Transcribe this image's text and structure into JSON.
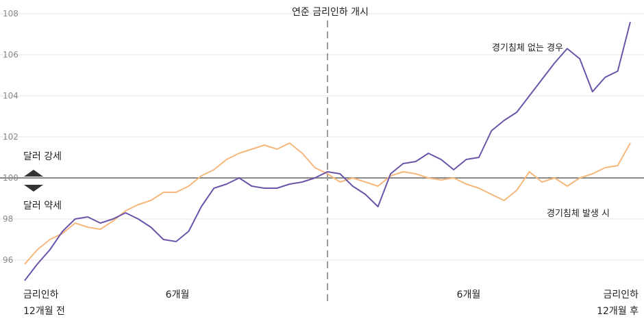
{
  "chart_data": {
    "type": "line",
    "title": "",
    "xlabel": "",
    "ylabel": "",
    "ylim": [
      95,
      108
    ],
    "yticks": [
      96,
      98,
      100,
      102,
      104,
      106,
      108
    ],
    "grid": true,
    "baseline": 100,
    "colors": {
      "no_recession": "#6a53a8",
      "recession": "#f7b77a",
      "baseline": "#888888",
      "event_line": "#9a9a9a",
      "arrow": "#333333"
    },
    "annotations": {
      "event": "연준 금리인하 개시",
      "dollar_strong": "달러 강세",
      "dollar_weak": "달러 약세"
    },
    "x_labels": {
      "start": [
        "금리인하",
        "12개월 전"
      ],
      "m6_before": "6개월",
      "m6_after": "6개월",
      "end": [
        "금리인하",
        "12개월 후"
      ]
    },
    "x_months": [
      -12,
      -11.5,
      -11,
      -10.5,
      -10,
      -9.5,
      -9,
      -8.5,
      -8,
      -7.5,
      -7,
      -6.5,
      -6,
      -5.5,
      -5,
      -4.5,
      -4,
      -3.5,
      -3,
      -2.5,
      -2,
      -1.5,
      -1,
      -0.5,
      0,
      0.5,
      1,
      1.5,
      2,
      2.5,
      3,
      3.5,
      4,
      4.5,
      5,
      5.5,
      6,
      6.5,
      7,
      7.5,
      8,
      8.5,
      9,
      9.5,
      10,
      10.5,
      11,
      11.5,
      12
    ],
    "series": [
      {
        "name": "경기침체 없는 경우",
        "values": [
          95.0,
          95.8,
          96.5,
          97.4,
          98.0,
          98.1,
          97.8,
          98.0,
          98.3,
          98.0,
          97.6,
          97.0,
          96.9,
          97.4,
          98.6,
          99.5,
          99.7,
          100.0,
          99.6,
          99.5,
          99.5,
          99.7,
          99.8,
          100.0,
          100.3,
          100.2,
          99.6,
          99.2,
          98.6,
          100.2,
          100.7,
          100.8,
          101.2,
          100.9,
          100.4,
          100.9,
          101.0,
          102.3,
          102.8,
          103.2,
          104.0,
          104.8,
          105.6,
          106.3,
          105.8,
          104.2,
          104.9,
          105.2,
          107.6
        ]
      },
      {
        "name": "경기침체 발생 시",
        "values": [
          95.8,
          96.5,
          97.0,
          97.3,
          97.8,
          97.6,
          97.5,
          97.9,
          98.4,
          98.7,
          98.9,
          99.3,
          99.3,
          99.6,
          100.1,
          100.4,
          100.9,
          101.2,
          101.4,
          101.6,
          101.4,
          101.7,
          101.2,
          100.5,
          100.2,
          99.8,
          100.0,
          99.8,
          99.6,
          100.1,
          100.3,
          100.2,
          100.0,
          99.9,
          100.0,
          99.7,
          99.5,
          99.2,
          98.9,
          99.4,
          100.3,
          99.8,
          100.0,
          99.6,
          100.0,
          100.2,
          100.5,
          100.6,
          101.7
        ]
      }
    ]
  }
}
